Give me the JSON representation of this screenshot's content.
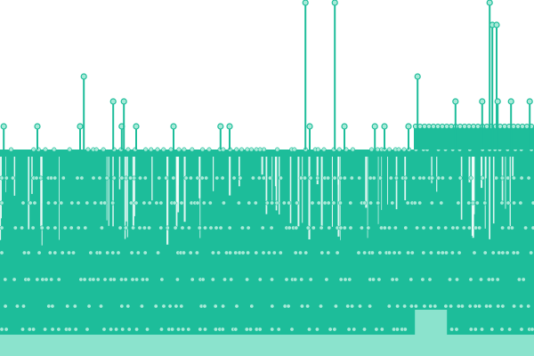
{
  "chart_data": {
    "type": "lollipop",
    "title": "",
    "xlabel": "",
    "ylabel": "",
    "n_stems": 150,
    "y_range": [
      0,
      1
    ],
    "baseline_band": {
      "color": "#8be3cd",
      "from": 0,
      "to": 0.06
    },
    "stem_color": "#1dbd9a",
    "marker_fill": "#a9ead8",
    "marker_stroke": "#1dbd9a",
    "background": "#ffffff",
    "tall_stems": [
      {
        "x": 0.007,
        "y": 0.645
      },
      {
        "x": 0.07,
        "y": 0.645
      },
      {
        "x": 0.15,
        "y": 0.645
      },
      {
        "x": 0.157,
        "y": 0.785
      },
      {
        "x": 0.212,
        "y": 0.715
      },
      {
        "x": 0.228,
        "y": 0.645
      },
      {
        "x": 0.232,
        "y": 0.715
      },
      {
        "x": 0.255,
        "y": 0.645
      },
      {
        "x": 0.325,
        "y": 0.645
      },
      {
        "x": 0.413,
        "y": 0.645
      },
      {
        "x": 0.43,
        "y": 0.645
      },
      {
        "x": 0.572,
        "y": 1.0
      },
      {
        "x": 0.58,
        "y": 0.645
      },
      {
        "x": 0.627,
        "y": 1.0
      },
      {
        "x": 0.645,
        "y": 0.645
      },
      {
        "x": 0.702,
        "y": 0.645
      },
      {
        "x": 0.72,
        "y": 0.645
      },
      {
        "x": 0.765,
        "y": 0.645
      },
      {
        "x": 0.782,
        "y": 0.785
      },
      {
        "x": 0.853,
        "y": 0.715
      },
      {
        "x": 0.903,
        "y": 0.715
      },
      {
        "x": 0.917,
        "y": 1.0
      },
      {
        "x": 0.922,
        "y": 0.93
      },
      {
        "x": 0.93,
        "y": 0.93
      },
      {
        "x": 0.932,
        "y": 0.715
      },
      {
        "x": 0.957,
        "y": 0.715
      },
      {
        "x": 0.992,
        "y": 0.715
      }
    ],
    "cluster_band": {
      "from": 0.775,
      "to": 1.0,
      "y": 0.645
    }
  }
}
